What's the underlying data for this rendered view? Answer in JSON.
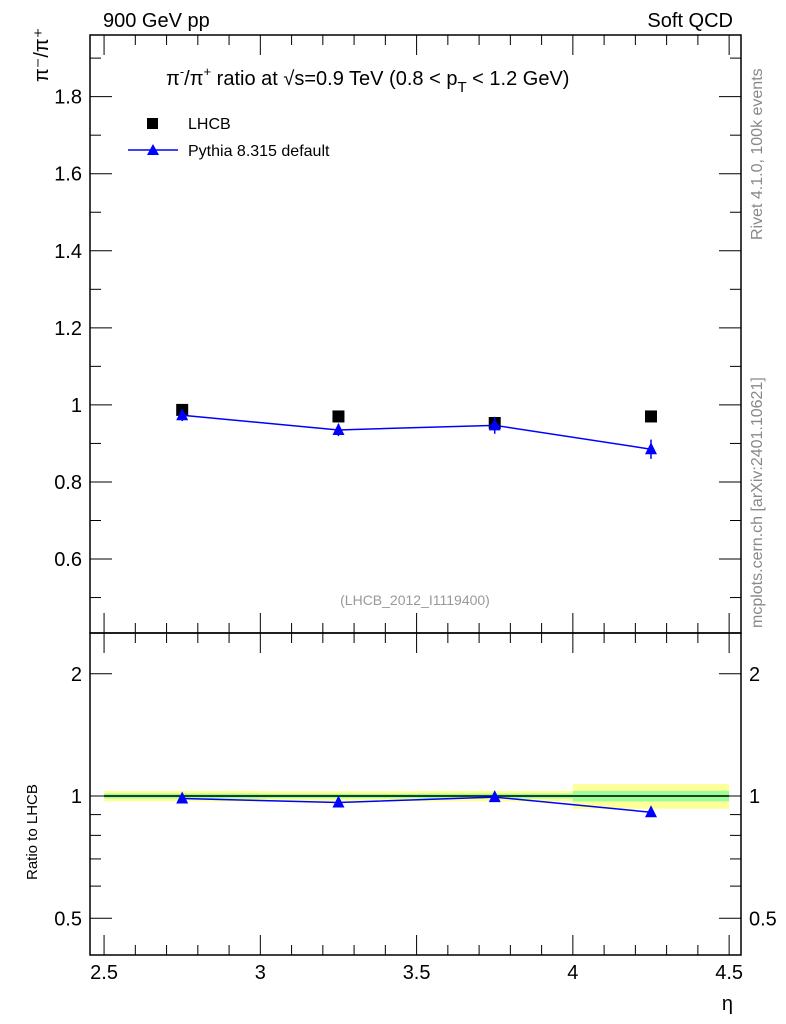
{
  "header": {
    "left": "900 GeV pp",
    "right": "Soft QCD"
  },
  "side": {
    "rivet": "Rivet 4.1.0,  100k events",
    "mcplots": "mcplots.cern.ch [arXiv:2401.10621]"
  },
  "chart_data": [
    {
      "type": "scatter",
      "title": "π⁻/π⁺ ratio at √s=0.9 TeV (0.8 < pT < 1.2 GeV)",
      "title_parts": {
        "a": "π",
        "b": "-",
        "c": "/π",
        "d": "+",
        "e": " ratio at ",
        "f": "s=0.9 TeV (0.8 < p",
        "g": "T",
        "h": " < 1.2 GeV)"
      },
      "ylabel": "π⁻/π⁺",
      "ylabel_parts": {
        "a": "π",
        "b": "-",
        "c": "/π",
        "d": "+"
      },
      "watermark": "(LHCB_2012_I1119400)",
      "xlim": [
        2.455,
        4.538
      ],
      "ylim": [
        0.408,
        1.96
      ],
      "yticks": [
        "0.6",
        "0.8",
        "1",
        "1.2",
        "1.4",
        "1.6",
        "1.8"
      ],
      "legend_position": "top-left",
      "x": [
        2.75,
        3.25,
        3.75,
        4.25
      ],
      "series": [
        {
          "name": "LHCB",
          "values": [
            0.987,
            0.97,
            0.953,
            0.97
          ],
          "errors": [
            0.004,
            0.004,
            0.004,
            0.004
          ],
          "color": "#000000",
          "marker": "square"
        },
        {
          "name": "Pythia 8.315 default",
          "values": [
            0.973,
            0.935,
            0.947,
            0.885
          ],
          "errors": [
            0.015,
            0.016,
            0.022,
            0.025
          ],
          "color": "#0000ff",
          "marker": "triangle"
        }
      ]
    },
    {
      "type": "line",
      "ylabel": "Ratio to LHCB",
      "xlabel": "η",
      "yscale": "log",
      "ylim": [
        0.406,
        2.52
      ],
      "yticks": [
        "0.5",
        "1",
        "2"
      ],
      "xticks": [
        "2.5",
        "3",
        "3.5",
        "4",
        "4.5"
      ],
      "x": [
        2.75,
        3.25,
        3.75,
        4.25
      ],
      "bins": [
        [
          2.5,
          3
        ],
        [
          3,
          3.5
        ],
        [
          3.5,
          4
        ],
        [
          4,
          4.5
        ]
      ],
      "band_yellow": [
        0.03,
        0.028,
        0.03,
        0.07
      ],
      "band_green": [
        0.014,
        0.013,
        0.014,
        0.03
      ],
      "series": [
        {
          "name": "Pythia 8.315 default",
          "values": [
            0.986,
            0.964,
            0.994,
            0.912
          ],
          "errors": [
            0.01,
            0.012,
            0.022,
            0.024
          ],
          "color": "#0000ff"
        }
      ]
    }
  ]
}
